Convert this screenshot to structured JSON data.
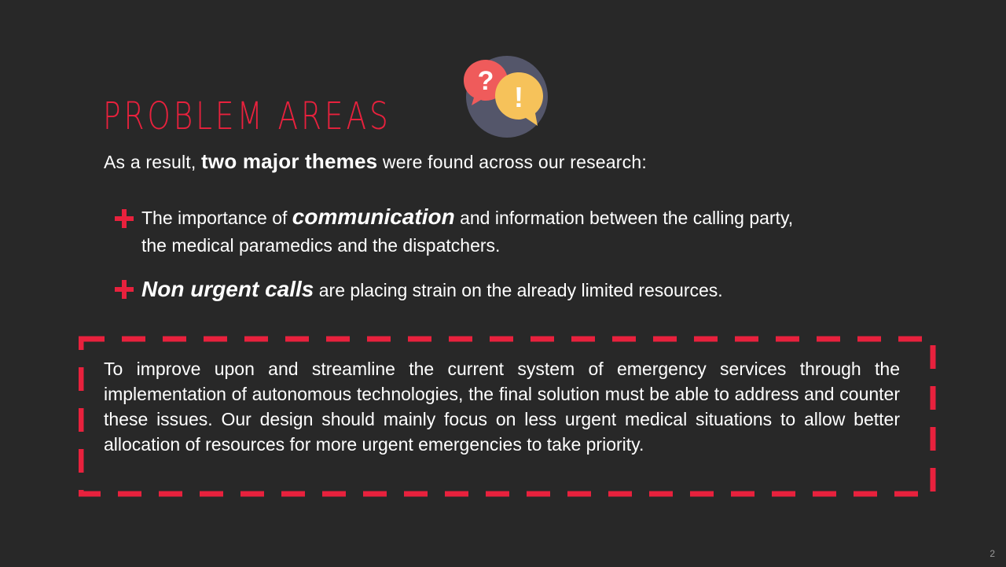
{
  "slide": {
    "title": "PROBLEM AREAS",
    "subtitle": {
      "before": "As a result, ",
      "bold": "two major themes",
      "after": " were found across our research:"
    },
    "bullets": [
      {
        "prefix": "The importance of ",
        "emphasis": "communication",
        "line1_rest": " and information between the calling party,",
        "line2": "the medical paramedics and the dispatchers."
      },
      {
        "prefix": "",
        "emphasis": "Non urgent calls",
        "line1_rest": " are placing strain on the already limited resources."
      }
    ],
    "conclusion": "To improve upon and streamline the current system of emergency services through the implementation of autonomous technologies, the final solution must be able to address and counter these issues. Our design should mainly focus on less urgent medical situations to allow better allocation of resources for more urgent emergencies to take priority.",
    "page_number": "2",
    "icons": {
      "illustration": "question-exclamation-bubbles-icon",
      "bullet": "plus-icon",
      "question_glyph": "?",
      "exclamation_glyph": "!"
    },
    "colors": {
      "background": "#282828",
      "accent": "#e8213d",
      "text": "#ffffff",
      "bubble_red": "#ef5b5b",
      "bubble_yellow": "#f6c25a",
      "icon_circle": "#54566a"
    }
  }
}
